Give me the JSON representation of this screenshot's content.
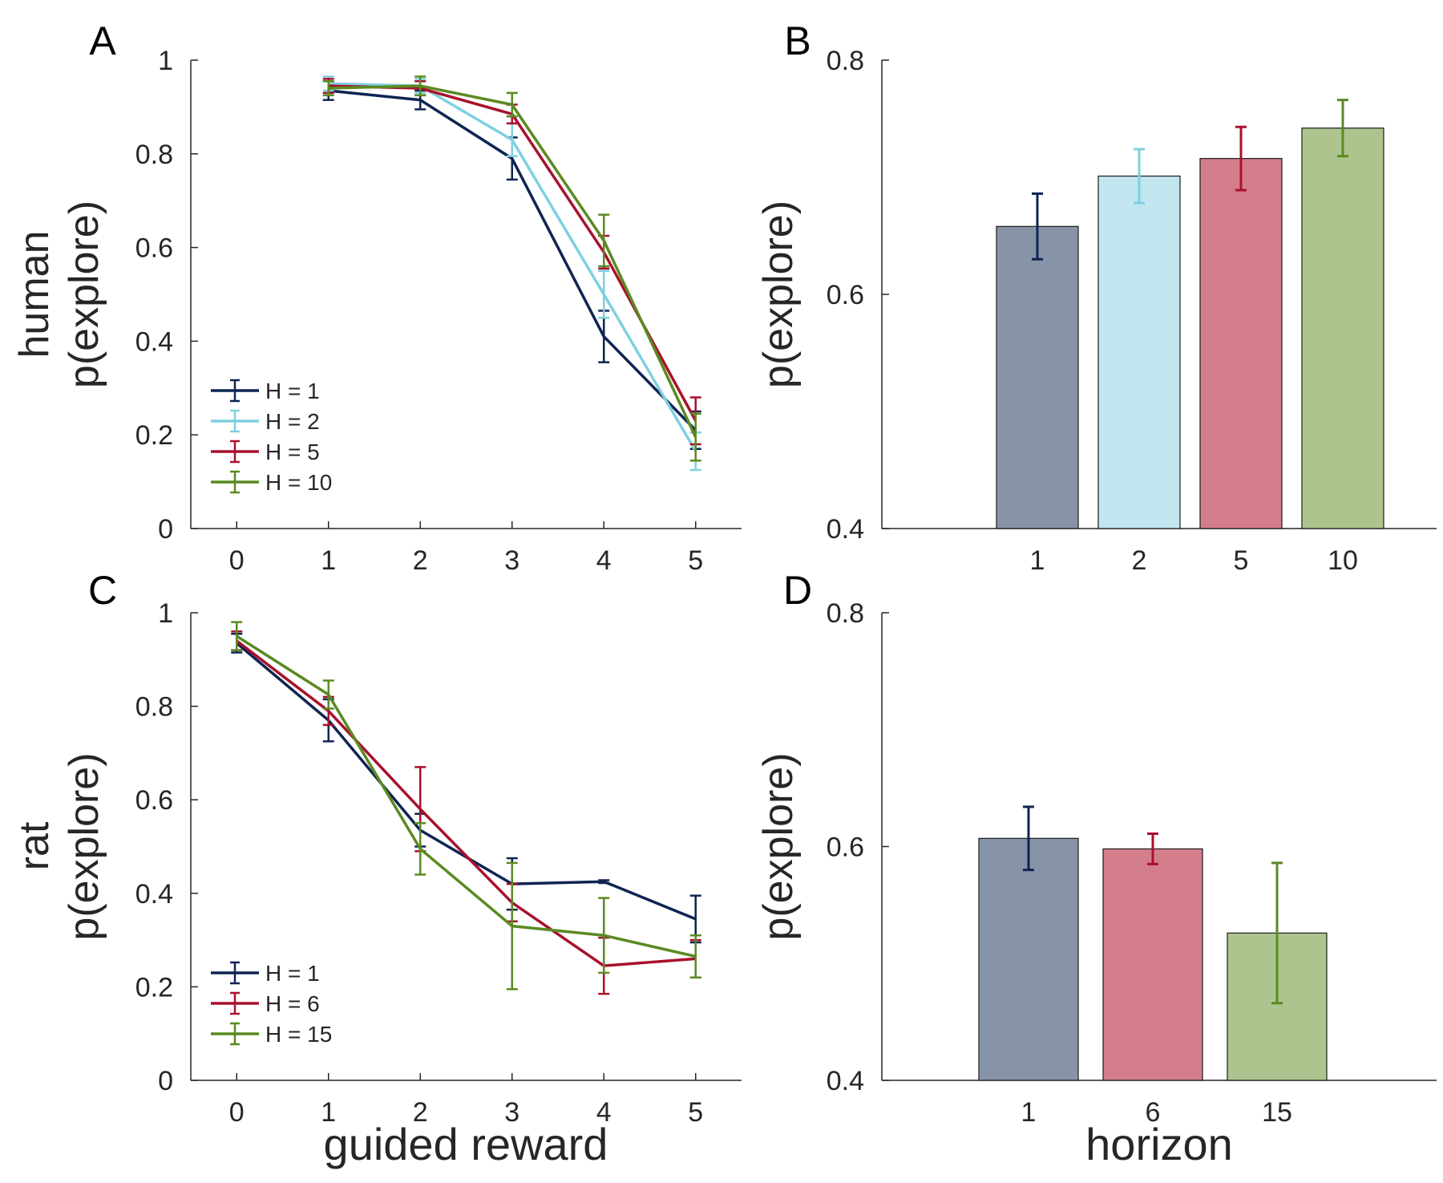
{
  "colors": {
    "navy": "#0f2452",
    "lightblue": "#7fd0e0",
    "red": "#a8112c",
    "green": "#5a8a22",
    "bar_navy": "#8794a8",
    "bar_lightblue": "#c1e6ef",
    "bar_red": "#d47e8c",
    "bar_green": "#adc48f"
  },
  "row_labels": {
    "top": "human",
    "bottom": "rat"
  },
  "x_labels": {
    "left": "guided reward",
    "right": "horizon"
  },
  "chart_data": [
    {
      "panel": "A",
      "type": "line",
      "ylabel": "p(explore)",
      "xlabel": "",
      "xlim": [
        -0.5,
        5.5
      ],
      "ylim": [
        0,
        1
      ],
      "xticks": [
        "0",
        "1",
        "2",
        "3",
        "4",
        "5"
      ],
      "yticks": [
        "0",
        "0.2",
        "0.4",
        "0.6",
        "0.8",
        "1"
      ],
      "legend_position": "bottom-left",
      "x": [
        1,
        2,
        3,
        4,
        5
      ],
      "series": [
        {
          "name": "H = 1",
          "color": "navy",
          "values": [
            0.935,
            0.915,
            0.79,
            0.41,
            0.21
          ],
          "errors": [
            0.02,
            0.02,
            0.045,
            0.055,
            0.04
          ]
        },
        {
          "name": "H = 2",
          "color": "lightblue",
          "values": [
            0.95,
            0.945,
            0.83,
            0.5,
            0.165
          ],
          "errors": [
            0.015,
            0.015,
            0.035,
            0.05,
            0.04
          ]
        },
        {
          "name": "H = 5",
          "color": "red",
          "values": [
            0.945,
            0.94,
            0.885,
            0.59,
            0.23
          ],
          "errors": [
            0.015,
            0.015,
            0.02,
            0.035,
            0.05
          ]
        },
        {
          "name": "H = 10",
          "color": "green",
          "values": [
            0.94,
            0.945,
            0.905,
            0.615,
            0.195
          ],
          "errors": [
            0.015,
            0.02,
            0.025,
            0.055,
            0.05
          ]
        }
      ]
    },
    {
      "panel": "B",
      "type": "bar",
      "ylabel": "p(explore)",
      "xlabel": "",
      "ylim": [
        0.4,
        0.8
      ],
      "yticks": [
        "0.4",
        "0.6",
        "0.8"
      ],
      "categories": [
        "1",
        "2",
        "5",
        "10"
      ],
      "values": [
        0.658,
        0.701,
        0.716,
        0.742
      ],
      "errors": [
        0.028,
        0.023,
        0.027,
        0.024
      ],
      "bar_colors": [
        "bar_navy",
        "bar_lightblue",
        "bar_red",
        "bar_green"
      ],
      "err_colors": [
        "navy",
        "lightblue",
        "red",
        "green"
      ]
    },
    {
      "panel": "C",
      "type": "line",
      "ylabel": "p(explore)",
      "xlabel": "guided reward",
      "xlim": [
        -0.5,
        5.5
      ],
      "ylim": [
        0,
        1
      ],
      "xticks": [
        "0",
        "1",
        "2",
        "3",
        "4",
        "5"
      ],
      "yticks": [
        "0",
        "0.2",
        "0.4",
        "0.6",
        "0.8",
        "1"
      ],
      "legend_position": "bottom-left",
      "x": [
        0,
        1,
        2,
        3,
        4,
        5
      ],
      "series": [
        {
          "name": "H = 1",
          "color": "navy",
          "values": [
            0.935,
            0.77,
            0.535,
            0.42,
            0.425,
            0.345
          ],
          "errors": [
            0.02,
            0.045,
            0.035,
            0.055,
            0.003,
            0.05
          ]
        },
        {
          "name": "H = 6",
          "color": "red",
          "values": [
            0.94,
            0.79,
            0.58,
            0.38,
            0.245,
            0.26
          ],
          "errors": [
            0.02,
            0.03,
            0.09,
            0.04,
            0.06,
            0.04
          ]
        },
        {
          "name": "H = 15",
          "color": "green",
          "values": [
            0.95,
            0.825,
            0.495,
            0.33,
            0.31,
            0.265
          ],
          "errors": [
            0.03,
            0.03,
            0.055,
            0.135,
            0.08,
            0.045
          ]
        }
      ]
    },
    {
      "panel": "D",
      "type": "bar",
      "ylabel": "p(explore)",
      "xlabel": "horizon",
      "ylim": [
        0.4,
        0.8
      ],
      "yticks": [
        "0.4",
        "0.6",
        "0.8"
      ],
      "categories": [
        "1",
        "6",
        "15"
      ],
      "values": [
        0.607,
        0.598,
        0.526
      ],
      "errors": [
        0.027,
        0.013,
        0.06
      ],
      "bar_colors": [
        "bar_navy",
        "bar_red",
        "bar_green"
      ],
      "err_colors": [
        "navy",
        "red",
        "green"
      ]
    }
  ]
}
